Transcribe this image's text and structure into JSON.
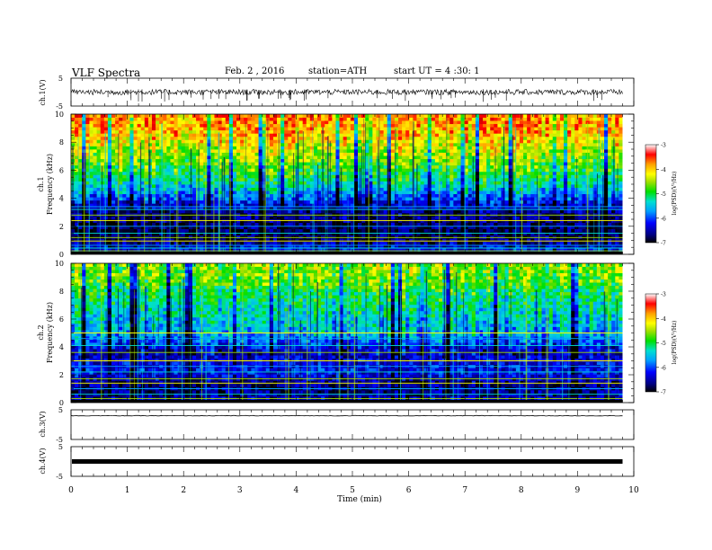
{
  "header": {
    "title": "VLF Spectra",
    "date": "Feb. 2 , 2016",
    "station": "station=ATH",
    "start_ut": "start UT = 4 :30: 1"
  },
  "time_axis": {
    "label": "Time (min)",
    "ticks": [
      "0",
      "1",
      "2",
      "3",
      "4",
      "5",
      "6",
      "7",
      "8",
      "9",
      "10"
    ],
    "range": [
      0,
      10
    ],
    "data_end": 9.8
  },
  "panels": {
    "ch1_waveform": {
      "ylabel": "ch.1(V)",
      "tick_top": "5",
      "tick_bottom": "-5",
      "range": [
        -5,
        5
      ]
    },
    "ch1_spectrogram": {
      "ylabel_channel": "ch.1",
      "ylabel": "Frequency (kHz)",
      "yticks": [
        "0",
        "2",
        "4",
        "6",
        "8",
        "10"
      ],
      "range": [
        0,
        10
      ]
    },
    "ch2_spectrogram": {
      "ylabel_channel": "ch.2",
      "ylabel": "Frequency (kHz)",
      "yticks": [
        "0",
        "2",
        "4",
        "6",
        "8",
        "10"
      ],
      "range": [
        0,
        10
      ]
    },
    "ch3_waveform": {
      "ylabel": "ch.3(V)",
      "tick_top": "5",
      "tick_bottom": "-5",
      "range": [
        -5,
        5
      ]
    },
    "ch4_waveform": {
      "ylabel": "ch.4(V)",
      "tick_top": "5",
      "tick_bottom": "-5",
      "range": [
        -5,
        5
      ]
    }
  },
  "colorbars": {
    "label": "log(PSD)(V²/Hz)",
    "ticks": [
      "-3",
      "-4",
      "-5",
      "-6",
      "-7"
    ],
    "range": [
      -7,
      -3
    ],
    "colors": [
      "#000000",
      "#0000aa",
      "#0000ff",
      "#00a0ff",
      "#00e0c0",
      "#00e000",
      "#a0e000",
      "#ffff00",
      "#ffa000",
      "#ff0000",
      "#c00000",
      "#ffffff"
    ]
  },
  "chart_data": [
    {
      "type": "line",
      "title": "VLF Spectra",
      "channel": "ch.1(V)",
      "x_range": [
        0,
        10
      ],
      "ylim": [
        -5,
        5
      ],
      "description_values": {
        "mean_voltage": 0,
        "typical_amplitude": 1,
        "spike_amplitude": 3.5
      }
    },
    {
      "type": "heatmap",
      "channel": "ch.1",
      "xlabel": "Time (min)",
      "ylabel": "Frequency (kHz)",
      "x_range": [
        0,
        9.8
      ],
      "ylim": [
        0,
        10
      ],
      "zlim": [
        -7,
        -3
      ],
      "band_profile": {
        "freq_kHz": [
          0,
          0.5,
          1,
          1.5,
          2,
          2.5,
          3,
          3.5,
          4,
          4.5,
          5,
          5.5,
          6,
          6.5,
          7,
          7.5,
          8,
          8.5,
          9,
          9.5,
          10
        ],
        "log_psd": [
          -6.0,
          -6.4,
          -6.7,
          -6.8,
          -6.8,
          -6.7,
          -6.6,
          -6.4,
          -6.0,
          -5.6,
          -5.3,
          -5.1,
          -4.9,
          -4.7,
          -4.5,
          -4.4,
          -4.2,
          -4.0,
          -3.9,
          -3.8,
          -3.7
        ]
      },
      "horizontal_lines_kHz": [
        0.25,
        0.45,
        0.65,
        0.95,
        1.2,
        1.5,
        2.0,
        2.4,
        2.8,
        3.2,
        3.4
      ]
    },
    {
      "type": "heatmap",
      "channel": "ch.2",
      "xlabel": "Time (min)",
      "ylabel": "Frequency (kHz)",
      "x_range": [
        0,
        9.8
      ],
      "ylim": [
        0,
        10
      ],
      "zlim": [
        -7,
        -3
      ],
      "band_profile": {
        "freq_kHz": [
          0,
          0.5,
          1,
          1.5,
          2,
          2.5,
          3,
          3.5,
          4,
          4.5,
          5,
          5.5,
          6,
          6.5,
          7,
          7.5,
          8,
          8.5,
          9,
          9.5,
          10
        ],
        "log_psd": [
          -6.3,
          -6.6,
          -6.7,
          -6.6,
          -6.3,
          -6.2,
          -6.3,
          -6.5,
          -6.3,
          -5.8,
          -5.6,
          -5.5,
          -5.4,
          -5.3,
          -5.2,
          -5.1,
          -5.0,
          -4.8,
          -4.7,
          -4.6,
          -4.6
        ]
      },
      "horizontal_lines_kHz": [
        0.3,
        0.6,
        1.0,
        1.4,
        1.7,
        2.2,
        2.6,
        3.0,
        3.6,
        4.1,
        4.6,
        5.0
      ]
    },
    {
      "type": "line",
      "channel": "ch.3(V)",
      "x_range": [
        0,
        9.8
      ],
      "ylim": [
        -5,
        5
      ],
      "description_values": {
        "mean_voltage": 0,
        "typical_amplitude": 0.2
      }
    },
    {
      "type": "line",
      "channel": "ch.4(V)",
      "x_range": [
        0,
        9.8
      ],
      "ylim": [
        -5,
        5
      ],
      "description_values": {
        "mean_voltage": 0,
        "typical_amplitude": 0.3
      }
    }
  ]
}
